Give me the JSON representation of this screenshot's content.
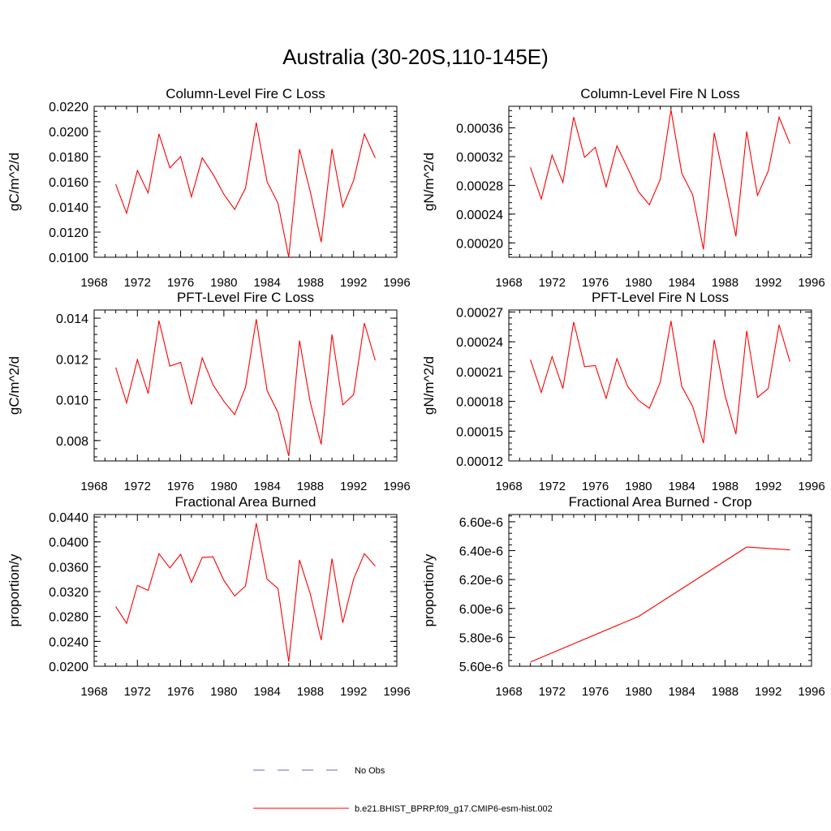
{
  "page": {
    "title": "Australia (30-20S,110-145E)"
  },
  "legend": {
    "placement": "bottom",
    "entries": [
      {
        "label": "No Obs",
        "color": "#6666cc",
        "style": "dashed"
      },
      {
        "label": "b.e21.BHIST_BPRP.f09_g17.CMIP6-esm-hist.002",
        "color": "#ff0000",
        "style": "solid"
      }
    ]
  },
  "chart_data": [
    {
      "type": "line",
      "title": "Column-Level Fire C Loss",
      "ylabel": "gC/m^2/d",
      "xlim": [
        1968,
        1996
      ],
      "ylim": [
        0.01,
        0.022
      ],
      "x_ticks": [
        1968,
        1972,
        1976,
        1980,
        1984,
        1988,
        1992,
        1996
      ],
      "y_ticks": [
        0.01,
        0.012,
        0.014,
        0.016,
        0.018,
        0.02,
        0.022
      ],
      "y_tick_labels": [
        "0.0100",
        "0.0120",
        "0.0140",
        "0.0160",
        "0.0180",
        "0.0200",
        "0.0220"
      ],
      "color": "#ff0000",
      "x": [
        1970,
        1971,
        1972,
        1973,
        1974,
        1975,
        1976,
        1977,
        1978,
        1979,
        1980,
        1981,
        1982,
        1983,
        1984,
        1985,
        1986,
        1987,
        1988,
        1989,
        1990,
        1991,
        1992,
        1993,
        1994
      ],
      "values": [
        0.0158,
        0.0135,
        0.0169,
        0.0151,
        0.0198,
        0.0171,
        0.018,
        0.0148,
        0.0179,
        0.0166,
        0.015,
        0.0138,
        0.0155,
        0.0207,
        0.016,
        0.0143,
        0.01,
        0.0186,
        0.0152,
        0.0112,
        0.0186,
        0.014,
        0.0161,
        0.0198,
        0.0179
      ]
    },
    {
      "type": "line",
      "title": "Column-Level Fire N Loss",
      "ylabel": "gN/m^2/d",
      "xlim": [
        1968,
        1996
      ],
      "ylim": [
        0.00018,
        0.00039
      ],
      "x_ticks": [
        1968,
        1972,
        1976,
        1980,
        1984,
        1988,
        1992,
        1996
      ],
      "y_ticks": [
        0.0002,
        0.00024,
        0.00028,
        0.00032,
        0.00036
      ],
      "y_tick_labels": [
        "0.00020",
        "0.00024",
        "0.00028",
        "0.00032",
        "0.00036"
      ],
      "color": "#ff0000",
      "x": [
        1970,
        1971,
        1972,
        1973,
        1974,
        1975,
        1976,
        1977,
        1978,
        1979,
        1980,
        1981,
        1982,
        1983,
        1984,
        1985,
        1986,
        1987,
        1988,
        1989,
        1990,
        1991,
        1992,
        1993,
        1994
      ],
      "values": [
        0.000305,
        0.000261,
        0.000322,
        0.000284,
        0.000375,
        0.000319,
        0.000333,
        0.000278,
        0.000335,
        0.000304,
        0.000271,
        0.000253,
        0.000288,
        0.000385,
        0.000297,
        0.000267,
        0.000191,
        0.000353,
        0.000283,
        0.000209,
        0.000355,
        0.000266,
        0.0003,
        0.000375,
        0.000338
      ]
    },
    {
      "type": "line",
      "title": "PFT-Level Fire C Loss",
      "ylabel": "gC/m^2/d",
      "xlim": [
        1968,
        1996
      ],
      "ylim": [
        0.007,
        0.0144
      ],
      "x_ticks": [
        1968,
        1972,
        1976,
        1980,
        1984,
        1988,
        1992,
        1996
      ],
      "y_ticks": [
        0.008,
        0.01,
        0.012,
        0.014
      ],
      "y_tick_labels": [
        "0.008",
        "0.010",
        "0.012",
        "0.014"
      ],
      "color": "#ff0000",
      "x": [
        1970,
        1971,
        1972,
        1973,
        1974,
        1975,
        1976,
        1977,
        1978,
        1979,
        1980,
        1981,
        1982,
        1983,
        1984,
        1985,
        1986,
        1987,
        1988,
        1989,
        1990,
        1991,
        1992,
        1993,
        1994
      ],
      "values": [
        0.01158,
        0.00985,
        0.01197,
        0.0103,
        0.01388,
        0.01165,
        0.01183,
        0.00977,
        0.01205,
        0.01073,
        0.00992,
        0.00927,
        0.01061,
        0.01395,
        0.01045,
        0.00938,
        0.00724,
        0.0129,
        0.00986,
        0.00781,
        0.0132,
        0.00975,
        0.01025,
        0.01376,
        0.01193
      ]
    },
    {
      "type": "line",
      "title": "PFT-Level Fire N Loss",
      "ylabel": "gN/m^2/d",
      "xlim": [
        1968,
        1996
      ],
      "ylim": [
        0.00012,
        0.000272
      ],
      "x_ticks": [
        1968,
        1972,
        1976,
        1980,
        1984,
        1988,
        1992,
        1996
      ],
      "y_ticks": [
        0.00012,
        0.00015,
        0.00018,
        0.00021,
        0.00024,
        0.00027
      ],
      "y_tick_labels": [
        "0.00012",
        "0.00015",
        "0.00018",
        "0.00021",
        "0.00024",
        "0.00027"
      ],
      "color": "#ff0000",
      "x": [
        1970,
        1971,
        1972,
        1973,
        1974,
        1975,
        1976,
        1977,
        1978,
        1979,
        1980,
        1981,
        1982,
        1983,
        1984,
        1985,
        1986,
        1987,
        1988,
        1989,
        1990,
        1991,
        1992,
        1993,
        1994
      ],
      "values": [
        0.000222,
        0.000189,
        0.000225,
        0.000193,
        0.00026,
        0.000215,
        0.000216,
        0.000183,
        0.000223,
        0.000195,
        0.000181,
        0.000173,
        0.000199,
        0.000261,
        0.000195,
        0.000175,
        0.000138,
        0.000242,
        0.000186,
        0.000147,
        0.000251,
        0.000184,
        0.000193,
        0.000257,
        0.00022
      ]
    },
    {
      "type": "line",
      "title": "Fractional Area Burned",
      "ylabel": "proportion/y",
      "xlim": [
        1968,
        1996
      ],
      "ylim": [
        0.02,
        0.0444
      ],
      "x_ticks": [
        1968,
        1972,
        1976,
        1980,
        1984,
        1988,
        1992,
        1996
      ],
      "y_ticks": [
        0.02,
        0.024,
        0.028,
        0.032,
        0.036,
        0.04,
        0.044
      ],
      "y_tick_labels": [
        "0.0200",
        "0.0240",
        "0.0280",
        "0.0320",
        "0.0360",
        "0.0400",
        "0.0440"
      ],
      "color": "#ff0000",
      "x": [
        1970,
        1971,
        1972,
        1973,
        1974,
        1975,
        1976,
        1977,
        1978,
        1979,
        1980,
        1981,
        1982,
        1983,
        1984,
        1985,
        1986,
        1987,
        1988,
        1989,
        1990,
        1991,
        1992,
        1993,
        1994
      ],
      "values": [
        0.0296,
        0.0269,
        0.033,
        0.0322,
        0.0381,
        0.0358,
        0.038,
        0.0335,
        0.0375,
        0.0376,
        0.0338,
        0.0313,
        0.0329,
        0.043,
        0.034,
        0.0325,
        0.0207,
        0.0371,
        0.0316,
        0.0242,
        0.0373,
        0.027,
        0.034,
        0.0381,
        0.0361
      ]
    },
    {
      "type": "line",
      "title": "Fractional Area Burned - Crop",
      "ylabel": "proportion/y",
      "xlim": [
        1968,
        1996
      ],
      "ylim": [
        5.6e-06,
        6.65e-06
      ],
      "x_ticks": [
        1968,
        1972,
        1976,
        1980,
        1984,
        1988,
        1992,
        1996
      ],
      "y_ticks": [
        5.6e-06,
        5.8e-06,
        6e-06,
        6.2e-06,
        6.4e-06,
        6.6e-06
      ],
      "y_tick_labels": [
        "5.60e-6",
        "5.80e-6",
        "6.00e-6",
        "6.20e-6",
        "6.40e-6",
        "6.60e-6"
      ],
      "color": "#ff0000",
      "x": [
        1970,
        1980,
        1990,
        1994
      ],
      "values": [
        5.63e-06,
        5.945e-06,
        6.425e-06,
        6.405e-06
      ]
    }
  ]
}
